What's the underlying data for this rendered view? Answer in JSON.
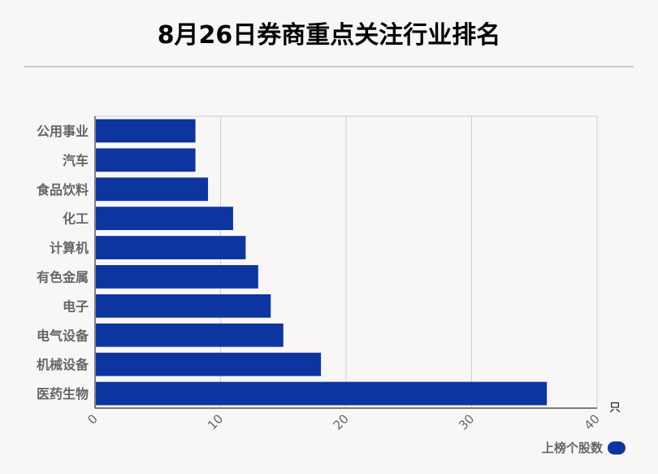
{
  "title": "8月26日券商重点关注行业排名",
  "unit": "只",
  "legend": {
    "label": "上榜个股数",
    "color": "#0d35a0"
  },
  "chart_data": {
    "type": "bar",
    "orientation": "horizontal",
    "title": "8月26日券商重点关注行业排名",
    "categories": [
      "公用事业",
      "汽车",
      "食品饮料",
      "化工",
      "计算机",
      "有色金属",
      "电子",
      "电气设备",
      "机械设备",
      "医药生物"
    ],
    "series": [
      {
        "name": "上榜个股数",
        "values": [
          8,
          8,
          9,
          11,
          12,
          13,
          14,
          15,
          18,
          36
        ]
      }
    ],
    "xlim": [
      0,
      40
    ],
    "xticks": [
      "0",
      "10",
      "20",
      "30",
      "40"
    ],
    "xunit": "只",
    "grid": true,
    "legend_position": "bottom-right",
    "bar_color": "#0d35a0"
  }
}
